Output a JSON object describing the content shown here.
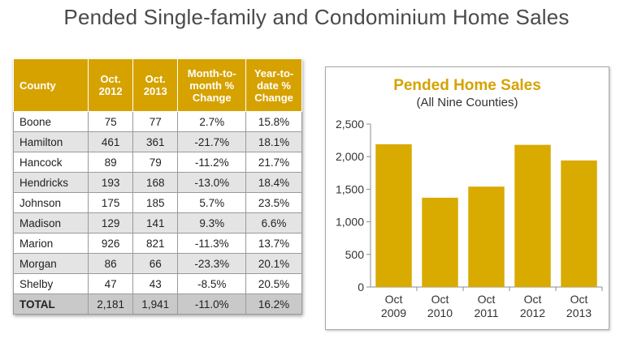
{
  "page": {
    "title": "Pended Single-family and Condominium Home Sales"
  },
  "table": {
    "headers": [
      "County",
      "Oct.\n2012",
      "Oct.\n2013",
      "Month-to-\nmonth %\nChange",
      "Year-to-\ndate %\nChange"
    ],
    "rows": [
      [
        "Boone",
        "75",
        "77",
        "2.7%",
        "15.8%"
      ],
      [
        "Hamilton",
        "461",
        "361",
        "-21.7%",
        "18.1%"
      ],
      [
        "Hancock",
        "89",
        "79",
        "-11.2%",
        "21.7%"
      ],
      [
        "Hendricks",
        "193",
        "168",
        "-13.0%",
        "18.4%"
      ],
      [
        "Johnson",
        "175",
        "185",
        "5.7%",
        "23.5%"
      ],
      [
        "Madison",
        "129",
        "141",
        "9.3%",
        "6.6%"
      ],
      [
        "Marion",
        "926",
        "821",
        "-11.3%",
        "13.7%"
      ],
      [
        "Morgan",
        "86",
        "66",
        "-23.3%",
        "20.1%"
      ],
      [
        "Shelby",
        "47",
        "43",
        "-8.5%",
        "20.5%"
      ]
    ],
    "total": [
      "TOTAL",
      "2,181",
      "1,941",
      "-11.0%",
      "16.2%"
    ],
    "colors": {
      "header": "#d6a200",
      "alt_row": "#e4e4e4",
      "total_row": "#c9c9c9"
    }
  },
  "chart_data": {
    "type": "bar",
    "title": "Pended Home Sales",
    "subtitle": "(All Nine Counties)",
    "categories": [
      "Oct\n2009",
      "Oct\n2010",
      "Oct\n2011",
      "Oct\n2012",
      "Oct\n2013"
    ],
    "values": [
      2190,
      1370,
      1540,
      2181,
      1941
    ],
    "ylim": [
      0,
      2500
    ],
    "yticks": [
      0,
      500,
      1000,
      1500,
      2000,
      2500
    ],
    "ytick_labels": [
      "0",
      "500",
      "1,000",
      "1,500",
      "2,000",
      "2,500"
    ],
    "xlabel": "",
    "ylabel": "",
    "grid": false,
    "colors": {
      "bar": "#d9aa00",
      "title": "#d6a200"
    }
  }
}
